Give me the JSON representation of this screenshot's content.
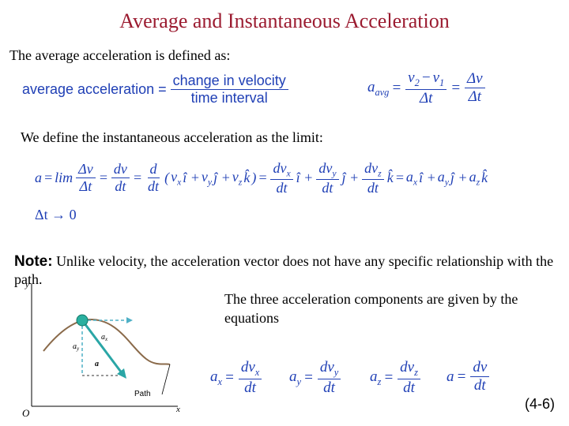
{
  "title": "Average and Instantaneous Acceleration",
  "intro": "The average acceleration is defined as:",
  "avg_def": {
    "lhs": "average acceleration =",
    "num": "change in velocity",
    "den": "time interval"
  },
  "avg_vector": [
    {
      "base": "a",
      "sub": "avg"
    },
    "=",
    {
      "num": [
        {
          "base": "v",
          "sub": "2"
        },
        "−",
        {
          "base": "v",
          "sub": "1"
        }
      ],
      "den": [
        "Δt"
      ]
    },
    "=",
    {
      "num": [
        "Δv"
      ],
      "den": [
        "Δt"
      ]
    }
  ],
  "inst_intro": "We define the instantaneous acceleration as the limit:",
  "inst_eq": [
    "a",
    "=",
    "lim",
    {
      "num": [
        "Δv"
      ],
      "den": [
        "Δt"
      ]
    },
    "=",
    {
      "num": [
        "dv"
      ],
      "den": [
        "dt"
      ]
    },
    "=",
    {
      "num": [
        "d"
      ],
      "den": [
        "dt"
      ]
    },
    "(",
    {
      "base": "v",
      "sub": "x"
    },
    "î +",
    {
      "base": "v",
      "sub": "y"
    },
    "ĵ +",
    {
      "base": "v",
      "sub": "z"
    },
    "k̂",
    ")",
    "=",
    {
      "num": [
        {
          "base": "dv",
          "sub": "x"
        }
      ],
      "den": [
        "dt"
      ]
    },
    "î +",
    {
      "num": [
        {
          "base": "dv",
          "sub": "y"
        }
      ],
      "den": [
        "dt"
      ]
    },
    "ĵ +",
    {
      "num": [
        {
          "base": "dv",
          "sub": "z"
        }
      ],
      "den": [
        "dt"
      ]
    },
    "k̂",
    "=",
    {
      "base": "a",
      "sub": "x"
    },
    "î +",
    {
      "base": "a",
      "sub": "y"
    },
    "ĵ +",
    {
      "base": "a",
      "sub": "z"
    },
    "k̂"
  ],
  "limit": "Δt → 0",
  "note_label": "Note:",
  "note_text": "Unlike velocity, the acceleration vector does not have any specific relationship with the path.",
  "components_text": "The three acceleration components are given by the equations",
  "component_eqs": [
    [
      {
        "base": "a",
        "sub": "x"
      },
      "=",
      {
        "num": [
          {
            "base": "dv",
            "sub": "x"
          }
        ],
        "den": [
          "dt"
        ]
      }
    ],
    [
      {
        "base": "a",
        "sub": "y"
      },
      "=",
      {
        "num": [
          {
            "base": "dv",
            "sub": "y"
          }
        ],
        "den": [
          "dt"
        ]
      }
    ],
    [
      {
        "base": "a",
        "sub": "z"
      },
      "=",
      {
        "num": [
          {
            "base": "dv",
            "sub": "z"
          }
        ],
        "den": [
          "dt"
        ]
      }
    ],
    [
      "a",
      "=",
      {
        "num": [
          "dv"
        ],
        "den": [
          "dt"
        ]
      }
    ]
  ],
  "figure": {
    "y_axis": "y",
    "x_axis": "x",
    "origin": "O",
    "ax": {
      "base": "a",
      "sub": "x"
    },
    "ay": {
      "base": "a",
      "sub": "y"
    },
    "a": "a",
    "path": "Path"
  },
  "footer": "(4-6)"
}
